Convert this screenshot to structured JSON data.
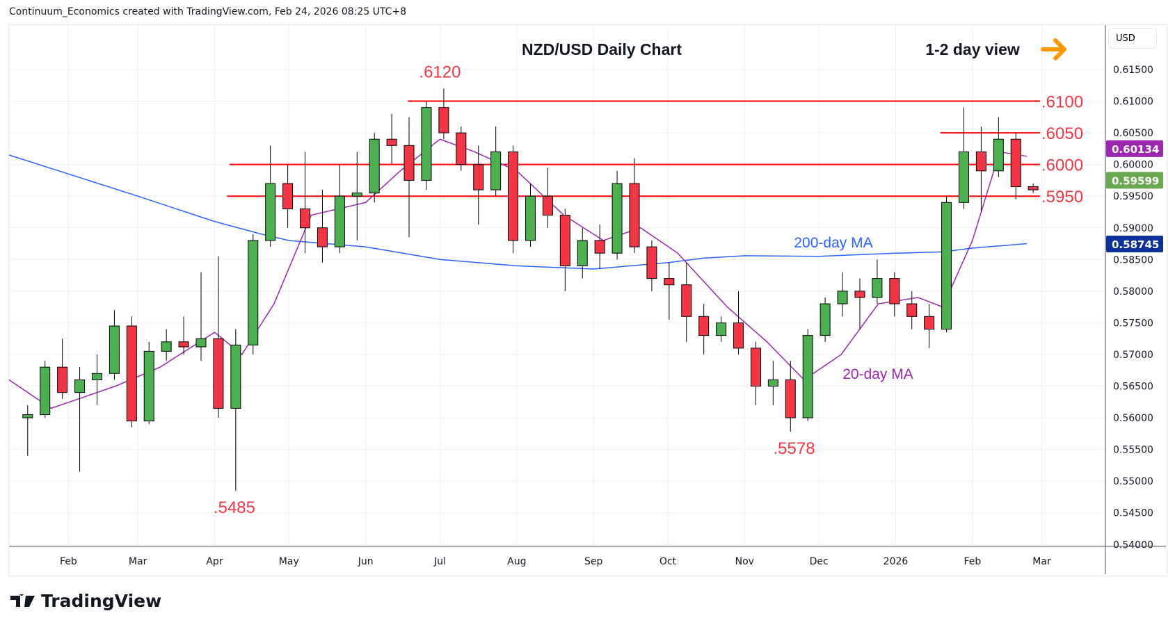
{
  "header": "Continuum_Economics created with TradingView.com, Feb 24, 2026 08:25 UTC+8",
  "logo_text": "TradingView",
  "currency": "USD",
  "chart_data": {
    "type": "candlestick",
    "title": "NZD/USD Daily Chart",
    "subtitle": "1-2 day view",
    "colors": {
      "up": "#4caf50",
      "down": "#f23645",
      "level": "#ff0000",
      "level_label": "#f23645",
      "ma200": "#2962ff",
      "ma20": "#9c27b0",
      "arrow": "#ff9800",
      "last_price": "#6aa84f"
    },
    "ylim": [
      0.54,
      0.6175
    ],
    "y_ticks": [
      "0.54000",
      "0.54500",
      "0.55000",
      "0.55500",
      "0.56000",
      "0.56500",
      "0.57000",
      "0.57500",
      "0.58000",
      "0.58500",
      "0.59000",
      "0.59500",
      "0.60000",
      "0.60500",
      "0.61000",
      "0.61500"
    ],
    "x_ticks": [
      {
        "date": "2025-02-01",
        "label": "Feb"
      },
      {
        "date": "2025-03-01",
        "label": "Mar"
      },
      {
        "date": "2025-04-01",
        "label": "Apr"
      },
      {
        "date": "2025-05-01",
        "label": "May"
      },
      {
        "date": "2025-06-01",
        "label": "Jun"
      },
      {
        "date": "2025-07-01",
        "label": "Jul"
      },
      {
        "date": "2025-08-01",
        "label": "Aug"
      },
      {
        "date": "2025-09-01",
        "label": "Sep"
      },
      {
        "date": "2025-10-01",
        "label": "Oct"
      },
      {
        "date": "2025-11-01",
        "label": "Nov"
      },
      {
        "date": "2025-12-01",
        "label": "Dec"
      },
      {
        "date": "2026-01-01",
        "label": "2026"
      },
      {
        "date": "2026-02-01",
        "label": "Feb"
      },
      {
        "date": "2026-03-01",
        "label": "Mar"
      }
    ],
    "candles": [
      [
        "2025-01-13",
        0.56,
        0.562,
        0.554,
        0.5605
      ],
      [
        "2025-01-20",
        0.5605,
        0.569,
        0.56,
        0.568
      ],
      [
        "2025-01-27",
        0.568,
        0.5725,
        0.563,
        0.564
      ],
      [
        "2025-02-03",
        0.564,
        0.568,
        0.5515,
        0.566
      ],
      [
        "2025-02-10",
        0.566,
        0.57,
        0.562,
        0.567
      ],
      [
        "2025-02-17",
        0.567,
        0.577,
        0.566,
        0.5745
      ],
      [
        "2025-02-24",
        0.5745,
        0.576,
        0.5585,
        0.5595
      ],
      [
        "2025-03-03",
        0.5595,
        0.572,
        0.559,
        0.5705
      ],
      [
        "2025-03-10",
        0.5705,
        0.574,
        0.569,
        0.572
      ],
      [
        "2025-03-17",
        0.572,
        0.576,
        0.57,
        0.5712
      ],
      [
        "2025-03-24",
        0.5712,
        0.583,
        0.569,
        0.5725
      ],
      [
        "2025-03-31",
        0.5725,
        0.5855,
        0.56,
        0.5615
      ],
      [
        "2025-04-07",
        0.5615,
        0.574,
        0.5485,
        0.5715
      ],
      [
        "2025-04-14",
        0.5715,
        0.589,
        0.57,
        0.588
      ],
      [
        "2025-04-21",
        0.588,
        0.603,
        0.587,
        0.597
      ],
      [
        "2025-04-28",
        0.597,
        0.6,
        0.59,
        0.593
      ],
      [
        "2025-05-05",
        0.593,
        0.602,
        0.586,
        0.59
      ],
      [
        "2025-05-12",
        0.59,
        0.596,
        0.5845,
        0.587
      ],
      [
        "2025-05-19",
        0.587,
        0.6,
        0.586,
        0.595
      ],
      [
        "2025-05-26",
        0.595,
        0.602,
        0.588,
        0.5955
      ],
      [
        "2025-06-02",
        0.5955,
        0.605,
        0.594,
        0.604
      ],
      [
        "2025-06-09",
        0.604,
        0.608,
        0.6,
        0.603
      ],
      [
        "2025-06-16",
        0.603,
        0.6075,
        0.5885,
        0.5975
      ],
      [
        "2025-06-23",
        0.5975,
        0.61,
        0.596,
        0.609
      ],
      [
        "2025-06-30",
        0.609,
        0.612,
        0.604,
        0.605
      ],
      [
        "2025-07-07",
        0.605,
        0.606,
        0.599,
        0.6
      ],
      [
        "2025-07-14",
        0.6,
        0.603,
        0.5905,
        0.596
      ],
      [
        "2025-07-21",
        0.596,
        0.606,
        0.595,
        0.602
      ],
      [
        "2025-07-28",
        0.602,
        0.603,
        0.586,
        0.588
      ],
      [
        "2025-08-04",
        0.588,
        0.597,
        0.587,
        0.595
      ],
      [
        "2025-08-11",
        0.595,
        0.5995,
        0.59,
        0.592
      ],
      [
        "2025-08-18",
        0.592,
        0.593,
        0.58,
        0.584
      ],
      [
        "2025-08-25",
        0.584,
        0.59,
        0.582,
        0.588
      ],
      [
        "2025-09-01",
        0.588,
        0.5905,
        0.5835,
        0.586
      ],
      [
        "2025-09-08",
        0.586,
        0.599,
        0.585,
        0.597
      ],
      [
        "2025-09-15",
        0.597,
        0.601,
        0.586,
        0.587
      ],
      [
        "2025-09-22",
        0.587,
        0.588,
        0.58,
        0.582
      ],
      [
        "2025-09-29",
        0.582,
        0.5845,
        0.5755,
        0.581
      ],
      [
        "2025-10-06",
        0.581,
        0.5845,
        0.572,
        0.576
      ],
      [
        "2025-10-13",
        0.576,
        0.578,
        0.57,
        0.573
      ],
      [
        "2025-10-20",
        0.573,
        0.576,
        0.572,
        0.575
      ],
      [
        "2025-10-27",
        0.575,
        0.58,
        0.57,
        0.571
      ],
      [
        "2025-11-03",
        0.571,
        0.572,
        0.562,
        0.565
      ],
      [
        "2025-11-10",
        0.565,
        0.569,
        0.562,
        0.566
      ],
      [
        "2025-11-17",
        0.566,
        0.569,
        0.5578,
        0.56
      ],
      [
        "2025-11-24",
        0.56,
        0.574,
        0.5595,
        0.573
      ],
      [
        "2025-12-01",
        0.573,
        0.579,
        0.572,
        0.578
      ],
      [
        "2025-12-08",
        0.578,
        0.583,
        0.576,
        0.58
      ],
      [
        "2025-12-15",
        0.58,
        0.582,
        0.574,
        0.579
      ],
      [
        "2025-12-22",
        0.579,
        0.585,
        0.578,
        0.582
      ],
      [
        "2025-12-29",
        0.582,
        0.583,
        0.576,
        0.578
      ],
      [
        "2026-01-05",
        0.578,
        0.58,
        0.574,
        0.576
      ],
      [
        "2026-01-12",
        0.576,
        0.578,
        0.571,
        0.574
      ],
      [
        "2026-01-19",
        0.574,
        0.595,
        0.5735,
        0.594
      ],
      [
        "2026-01-26",
        0.594,
        0.609,
        0.593,
        0.602
      ],
      [
        "2026-02-02",
        0.602,
        0.606,
        0.5925,
        0.599
      ],
      [
        "2026-02-09",
        0.599,
        0.6075,
        0.598,
        0.604
      ],
      [
        "2026-02-16",
        0.604,
        0.605,
        0.5945,
        0.5965
      ],
      [
        "2026-02-23",
        0.5965,
        0.597,
        0.5955,
        0.596
      ]
    ],
    "ma200": {
      "label": "200-day MA",
      "last": "0.58745",
      "points": [
        [
          "2025-01-08",
          0.6015
        ],
        [
          "2025-02-01",
          0.5985
        ],
        [
          "2025-03-01",
          0.595
        ],
        [
          "2025-04-01",
          0.591
        ],
        [
          "2025-04-20",
          0.589
        ],
        [
          "2025-05-01",
          0.588
        ],
        [
          "2025-06-01",
          0.587
        ],
        [
          "2025-07-01",
          0.585
        ],
        [
          "2025-08-01",
          0.584
        ],
        [
          "2025-09-01",
          0.5835
        ],
        [
          "2025-10-01",
          0.5845
        ],
        [
          "2025-10-15",
          0.5852
        ],
        [
          "2025-11-01",
          0.5856
        ],
        [
          "2025-12-01",
          0.5855
        ],
        [
          "2026-01-01",
          0.586
        ],
        [
          "2026-01-20",
          0.5862
        ],
        [
          "2026-02-01",
          0.5868
        ],
        [
          "2026-02-23",
          0.5875
        ]
      ]
    },
    "ma20": {
      "label": "20-day MA",
      "last": "0.60134",
      "points": [
        [
          "2025-01-08",
          0.566
        ],
        [
          "2025-01-25",
          0.5615
        ],
        [
          "2025-02-20",
          0.565
        ],
        [
          "2025-03-10",
          0.568
        ],
        [
          "2025-04-01",
          0.5735
        ],
        [
          "2025-04-12",
          0.57
        ],
        [
          "2025-04-25",
          0.578
        ],
        [
          "2025-05-10",
          0.592
        ],
        [
          "2025-06-01",
          0.594
        ],
        [
          "2025-06-15",
          0.599
        ],
        [
          "2025-07-01",
          0.604
        ],
        [
          "2025-07-15",
          0.602
        ],
        [
          "2025-08-01",
          0.599
        ],
        [
          "2025-08-20",
          0.592
        ],
        [
          "2025-09-05",
          0.588
        ],
        [
          "2025-09-20",
          0.59
        ],
        [
          "2025-10-05",
          0.586
        ],
        [
          "2025-10-25",
          0.5775
        ],
        [
          "2025-11-10",
          0.572
        ],
        [
          "2025-11-25",
          0.566
        ],
        [
          "2025-12-10",
          0.57
        ],
        [
          "2025-12-25",
          0.578
        ],
        [
          "2026-01-10",
          0.579
        ],
        [
          "2026-01-20",
          0.5775
        ],
        [
          "2026-02-01",
          0.588
        ],
        [
          "2026-02-12",
          0.602
        ],
        [
          "2026-02-23",
          0.6013
        ]
      ]
    },
    "last_price": "0.59599",
    "levels": [
      {
        "value": 0.61,
        "label": ".6100",
        "from": "2025-06-18"
      },
      {
        "value": 0.605,
        "label": ".6050",
        "from": "2026-01-19"
      },
      {
        "value": 0.6,
        "label": ".6000",
        "from": "2025-04-07"
      },
      {
        "value": 0.595,
        "label": ".5950",
        "from": "2025-04-06"
      }
    ],
    "annotations": [
      {
        "text": ".6120",
        "date": "2025-07-01",
        "value": 0.612,
        "pos": "above"
      },
      {
        "text": ".5485",
        "date": "2025-04-09",
        "value": 0.5485,
        "pos": "below"
      },
      {
        "text": ".5578",
        "date": "2025-11-21",
        "value": 0.5578,
        "pos": "below"
      }
    ]
  }
}
